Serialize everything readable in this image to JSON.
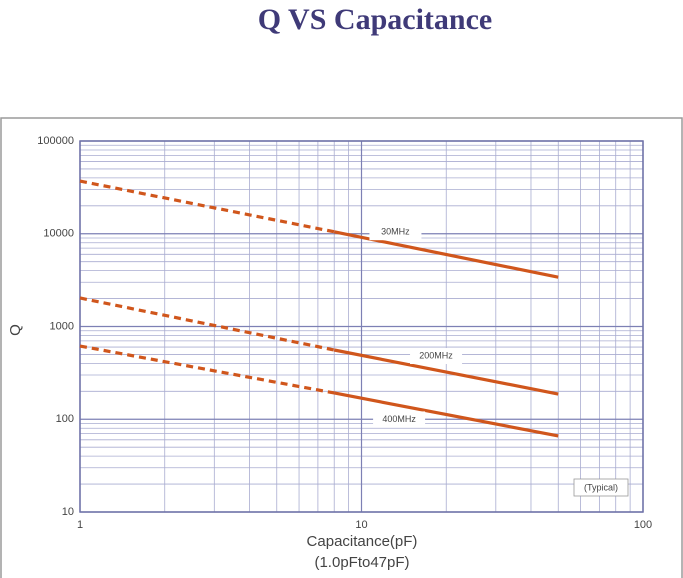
{
  "chart_data": {
    "type": "line",
    "title": "Q VS Capacitance",
    "x_label": "Capacitance(pF)",
    "x_sublabel": "(1.0pFto47pF)",
    "y_label": "Q",
    "annotation": "(Typical)",
    "log_x": true,
    "log_y": true,
    "grid": true,
    "dashed_below_x": 8,
    "x": [
      1,
      8,
      50
    ],
    "series": [
      {
        "name": "30MHz",
        "color": "#d0561c",
        "values": [
          37000,
          10500,
          3400
        ]
      },
      {
        "name": "200MHz",
        "color": "#d0561c",
        "values": [
          2030,
          558,
          187
        ]
      },
      {
        "name": "400MHz",
        "color": "#d0561c",
        "values": [
          616,
          192,
          66
        ]
      }
    ],
    "xlim": [
      1,
      100
    ],
    "xticks": [
      1,
      10,
      100
    ],
    "ylim": [
      10,
      100000
    ],
    "yticks": [
      10,
      100,
      1000,
      10000,
      100000
    ]
  }
}
